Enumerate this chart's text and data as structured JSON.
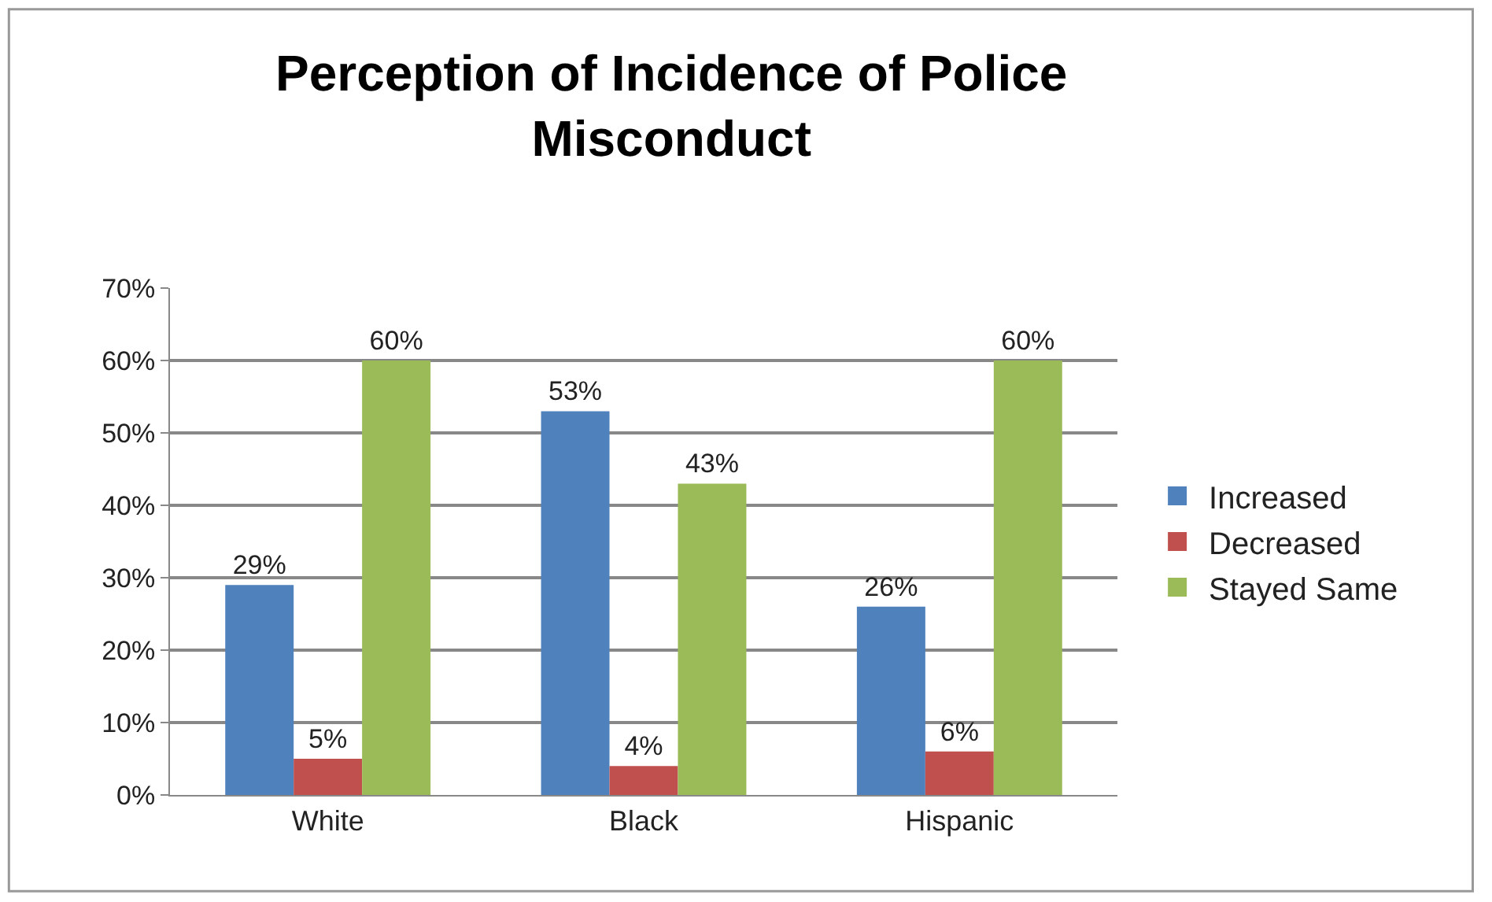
{
  "chart_data": {
    "type": "bar",
    "title": "Perception of Incidence of Police Misconduct",
    "categories": [
      "White",
      "Black",
      "Hispanic"
    ],
    "series": [
      {
        "name": "Increased",
        "color": "#4f81bd",
        "values": [
          29,
          53,
          26
        ],
        "value_labels": [
          "29%",
          "53%",
          "26%"
        ]
      },
      {
        "name": "Decreased",
        "color": "#c0504d",
        "values": [
          5,
          4,
          6
        ],
        "value_labels": [
          "5%",
          "4%",
          "6%"
        ]
      },
      {
        "name": "Stayed Same",
        "color": "#9bbb59",
        "values": [
          60,
          43,
          60
        ],
        "value_labels": [
          "60%",
          "43%",
          "60%"
        ]
      }
    ],
    "ylim": [
      0,
      70
    ],
    "yticks": [
      {
        "value": 0,
        "label": "0%"
      },
      {
        "value": 10,
        "label": "10%"
      },
      {
        "value": 20,
        "label": "20%"
      },
      {
        "value": 30,
        "label": "30%"
      },
      {
        "value": 40,
        "label": "40%"
      },
      {
        "value": 50,
        "label": "50%"
      },
      {
        "value": 60,
        "label": "60%"
      },
      {
        "value": 70,
        "label": "70%"
      }
    ],
    "grid": "y",
    "legend": "right"
  }
}
